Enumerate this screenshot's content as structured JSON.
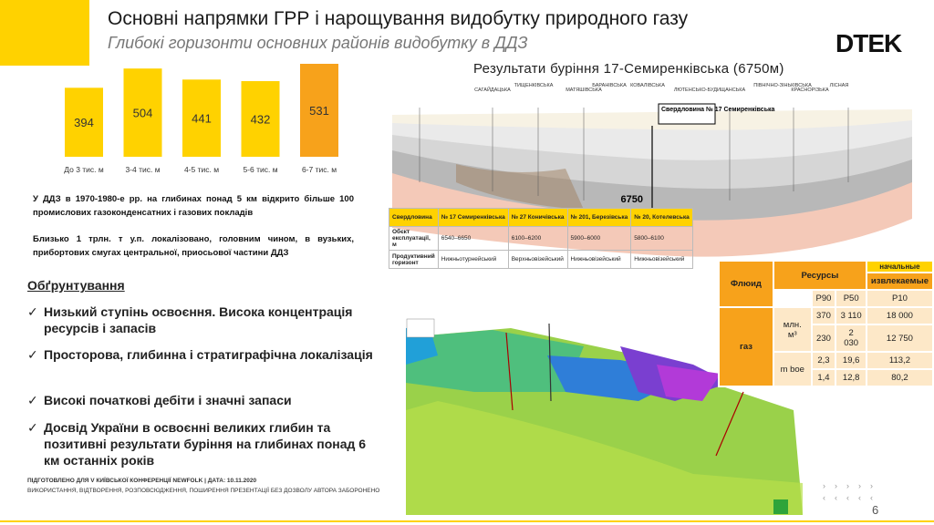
{
  "header": {
    "title": "Основні напрямки ГРР і нарощування видобутку природного газу",
    "subtitle": "Глибокі горизонти  основних районів видобутку в ДДЗ",
    "logo": "DTEK"
  },
  "bar_chart": {
    "type": "bar",
    "categories": [
      "До 3 тис. м",
      "3-4 тис. м",
      "4-5 тис. м",
      "5-6 тис. м",
      "6-7 тис. м"
    ],
    "values": [
      394,
      504,
      441,
      432,
      531
    ],
    "colors": [
      "#ffd200",
      "#ffd200",
      "#ffd200",
      "#ffd200",
      "#f7a21b"
    ]
  },
  "notes": [
    "У ДДЗ в 1970-1980-е рр. на глибинах понад 5 км відкрито більше 100 промислових газоконденсатних і газових покладів",
    "Близько 1 трлн. т у.п. локалізовано, головним чином, в вузьких, прибортових смугах центральної, приосьової частини ДДЗ"
  ],
  "rationale": {
    "heading": "Обґрунтування",
    "bullets": [
      "Низький ступінь освоєння. Висока концентрація ресурсів і запасів",
      "Просторова, глибинна і стратиграфічна локалізація",
      "Високі початкові дебіти і значні запаси",
      "Досвід України в освоєнні великих глибин та позитивні результати буріння на глибинах понад 6 км останніх років"
    ]
  },
  "section": {
    "title": "Результати буріння 17-Семиренківська (6750м)",
    "areas": [
      "САГАЙДАЦЬКА",
      "ТИЩЕНКІВСЬКА",
      "МАТЯШІВСЬКА",
      "БАРАНІВСЬКА",
      "КОВАЛІВСЬКА",
      "ЛЮТЕНСЬКО-БУДИЩАНСЬКА",
      "ПІВНІЧНО-ЗІНЬКІВСЬКА",
      "ЛІСНАЯ",
      "КРАСНОРІЗЬКА"
    ],
    "well_label": "Свердловина № 17 Семиренківська",
    "depth_label": "6750"
  },
  "wells_table": {
    "rows": [
      [
        "Свердловина",
        "№ 17 Семиренківська",
        "№ 27 Коничівська",
        "№ 201, Березівська",
        "№ 20, Котелевська"
      ],
      [
        "Обєкт експлуатації, м",
        "6540–6650",
        "6100–6200",
        "5900–6000",
        "5800–6100"
      ],
      [
        "Продуктивний горизонт",
        "Нижньотурнейський",
        "Верхньовізейський",
        "Нижньовізейський",
        "Нижньовізейський"
      ]
    ]
  },
  "resources_table": {
    "fluid": "Флюид",
    "resources": "Ресурсы",
    "initial": "начальные",
    "recoverable": "извлекаемые",
    "columns": [
      "P90",
      "P50",
      "P10"
    ],
    "fluid_name": "газ",
    "unit1": "млн. м³",
    "unit2": "m boe",
    "rows": [
      [
        "370",
        "3 110",
        "18 000"
      ],
      [
        "230",
        "2 030",
        "12 750"
      ],
      [
        "2,3",
        "19,6",
        "113,2"
      ],
      [
        "1,4",
        "12,8",
        "80,2"
      ]
    ]
  },
  "footer": {
    "line1": "ПІДГОТОВЛЕНО ДЛЯ V КИЇВСЬКОЇ КОНФЕРЕНЦІЇ NEWFOLK | ДАТА: 10.11.2020",
    "line2": "ВИКОРИСТАННЯ, ВІДТВОРЕННЯ, РОЗПОВСЮДЖЕННЯ, ПОШИРЕННЯ ПРЕЗЕНТАЦІЇ БЕЗ ДОЗВОЛУ АВТОРА ЗАБОРОНЕНО",
    "page": "6"
  }
}
